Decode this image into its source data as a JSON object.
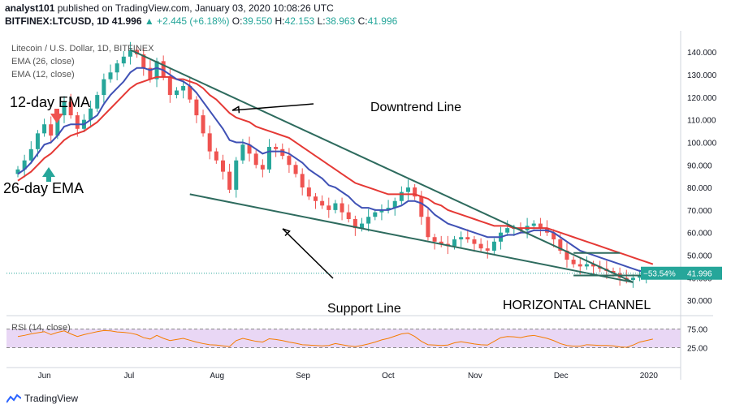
{
  "header": {
    "line1_author": "analyst101",
    "line1_rest": "published on TradingView.com, January 03, 2020 10:08:26 UTC",
    "symbol": "BITFINEX:LTCUSD, 1D",
    "last": "41.996",
    "change": "▲ +2.445 (+6.18%)",
    "o_label": "O:",
    "o": "39.550",
    "h_label": "H:",
    "h": "42.153",
    "l_label": "L:",
    "l": "38.963",
    "c_label": "C:",
    "c": "41.996"
  },
  "legend": {
    "title": "Litecoin / U.S. Dollar, 1D, BITFINEX",
    "ema26": "EMA (26, close)",
    "ema12": "EMA (12, close)"
  },
  "annotations": {
    "ema12": "12-day EMA",
    "ema26": "26-day EMA",
    "downtrend": "Downtrend Line",
    "support": "Support Line",
    "channel": "HORIZONTAL CHANNEL"
  },
  "price_tags": {
    "change_pct": "−53.54%",
    "last": "41.996"
  },
  "rsi": {
    "label": "RSI (14, close)",
    "levels": [
      "75.00",
      "25.00"
    ]
  },
  "footer": {
    "brand": "TradingView"
  },
  "colors": {
    "up": "#26a69a",
    "down": "#ef5350",
    "ema12": "#3f51b5",
    "ema26": "#e53935",
    "trendline": "#2e6b5e",
    "rsi_line": "#f57c00",
    "rsi_band": "#e9d7f5"
  },
  "chart_data": {
    "type": "candlestick",
    "price_axis_ticks": [
      "140.000",
      "130.000",
      "120.000",
      "110.000",
      "100.000",
      "90.000",
      "80.000",
      "70.000",
      "60.000",
      "50.000",
      "40.000",
      "30.000"
    ],
    "ylim": [
      25,
      148
    ],
    "time_axis_ticks": [
      "Jun",
      "Jul",
      "Aug",
      "Sep",
      "Oct",
      "Nov",
      "Dec",
      "2020"
    ],
    "closes": [
      88,
      92,
      97,
      104,
      108,
      103,
      112,
      118,
      112,
      106,
      110,
      115,
      121,
      128,
      131,
      135,
      138,
      141,
      139,
      133,
      128,
      136,
      129,
      121,
      123,
      125,
      119,
      112,
      104,
      96,
      92,
      87,
      79,
      92,
      99,
      95,
      90,
      88,
      98,
      97,
      94,
      90,
      86,
      80,
      76,
      74,
      72,
      70,
      73,
      69,
      66,
      62,
      64,
      67,
      69,
      70,
      71,
      74,
      78,
      80,
      76,
      67,
      58,
      56,
      55,
      54,
      57,
      58,
      57,
      55,
      53,
      52,
      56,
      60,
      62,
      62,
      61,
      63,
      64,
      62,
      60,
      57,
      52,
      48,
      46,
      45,
      46,
      45,
      44,
      43,
      42,
      40,
      39,
      40,
      41,
      41,
      42
    ],
    "rsi": [
      55,
      58,
      62,
      65,
      68,
      60,
      66,
      70,
      62,
      55,
      60,
      64,
      68,
      71,
      70,
      67,
      66,
      64,
      60,
      52,
      48,
      58,
      50,
      44,
      47,
      50,
      45,
      40,
      36,
      33,
      32,
      30,
      28,
      44,
      50,
      46,
      42,
      40,
      49,
      47,
      44,
      40,
      37,
      33,
      32,
      31,
      30,
      31,
      36,
      33,
      30,
      28,
      31,
      35,
      40,
      46,
      50,
      56,
      62,
      64,
      55,
      42,
      33,
      32,
      31,
      32,
      38,
      41,
      38,
      35,
      33,
      32,
      42,
      52,
      55,
      54,
      52,
      56,
      58,
      54,
      50,
      44,
      36,
      31,
      29,
      29,
      33,
      32,
      31,
      31,
      30,
      27,
      26,
      32,
      40,
      44,
      48
    ],
    "ema12": [
      86,
      88,
      91,
      95,
      99,
      100,
      103,
      107,
      108,
      108,
      108,
      110,
      112,
      117,
      121,
      124,
      127,
      131,
      133,
      133,
      132,
      133,
      132,
      130,
      128,
      127,
      125,
      122,
      118,
      114,
      110,
      106,
      101,
      100,
      100,
      99,
      97,
      95,
      96,
      96,
      96,
      95,
      93,
      91,
      88,
      86,
      84,
      81,
      80,
      78,
      76,
      73,
      71,
      71,
      70,
      70,
      70,
      71,
      72,
      74,
      74,
      73,
      71,
      68,
      66,
      64,
      63,
      62,
      61,
      60,
      59,
      58,
      58,
      58,
      59,
      59,
      60,
      60,
      61,
      61,
      61,
      60,
      58,
      56,
      54,
      52,
      51,
      50,
      49,
      48,
      47,
      46,
      45,
      44,
      43,
      43,
      42
    ],
    "ema26": [
      83,
      85,
      87,
      90,
      93,
      95,
      98,
      101,
      103,
      104,
      105,
      107,
      109,
      112,
      115,
      118,
      121,
      124,
      126,
      127,
      128,
      129,
      129,
      129,
      128,
      128,
      127,
      126,
      124,
      121,
      119,
      116,
      113,
      111,
      110,
      109,
      107,
      106,
      105,
      104,
      103,
      102,
      100,
      98,
      96,
      94,
      92,
      90,
      88,
      86,
      84,
      82,
      81,
      80,
      79,
      78,
      77,
      77,
      77,
      77,
      77,
      76,
      75,
      73,
      72,
      70,
      69,
      68,
      67,
      66,
      65,
      64,
      63,
      63,
      63,
      62,
      62,
      62,
      62,
      62,
      62,
      61,
      60,
      59,
      58,
      57,
      56,
      55,
      54,
      53,
      52,
      51,
      50,
      49,
      48,
      47,
      46
    ]
  }
}
